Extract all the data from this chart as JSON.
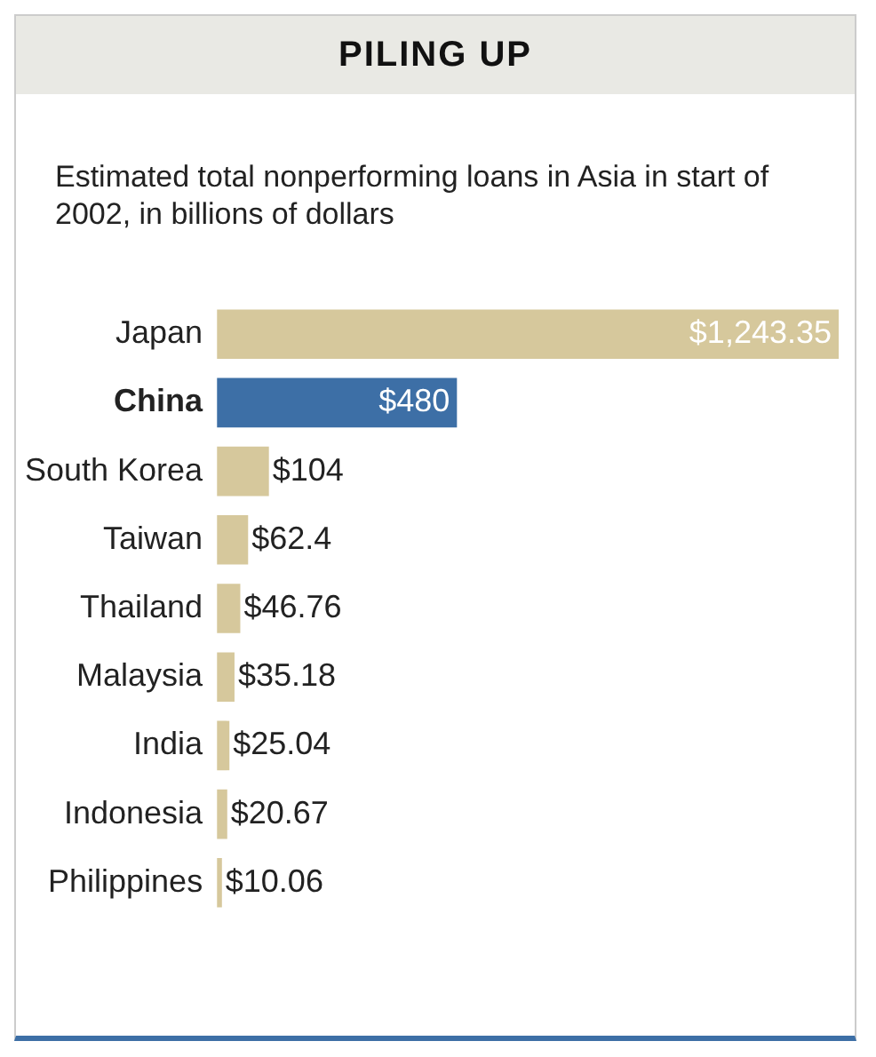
{
  "chart_data": {
    "type": "bar",
    "orientation": "horizontal",
    "title": "PILING UP",
    "subtitle": "Estimated total nonperforming loans in Asia in start of 2002, in billions of dollars",
    "categories": [
      "Japan",
      "China",
      "South Korea",
      "Taiwan",
      "Thailand",
      "Malaysia",
      "India",
      "Indonesia",
      "Philippines"
    ],
    "values": [
      1243.35,
      480,
      104,
      62.4,
      46.76,
      35.18,
      25.04,
      20.67,
      10.06
    ],
    "value_labels": [
      "$1,243.35",
      "$480",
      "$104",
      "$62.4",
      "$46.76",
      "$35.18",
      "$25.04",
      "$20.67",
      "$10.06"
    ],
    "colors": [
      "#d6c89c",
      "#3d6fa6",
      "#d6c89c",
      "#d6c89c",
      "#d6c89c",
      "#d6c89c",
      "#d6c89c",
      "#d6c89c",
      "#d6c89c"
    ],
    "xlim": [
      0,
      1243.35
    ],
    "tick_labels": "y",
    "grid": false,
    "legend": false
  }
}
